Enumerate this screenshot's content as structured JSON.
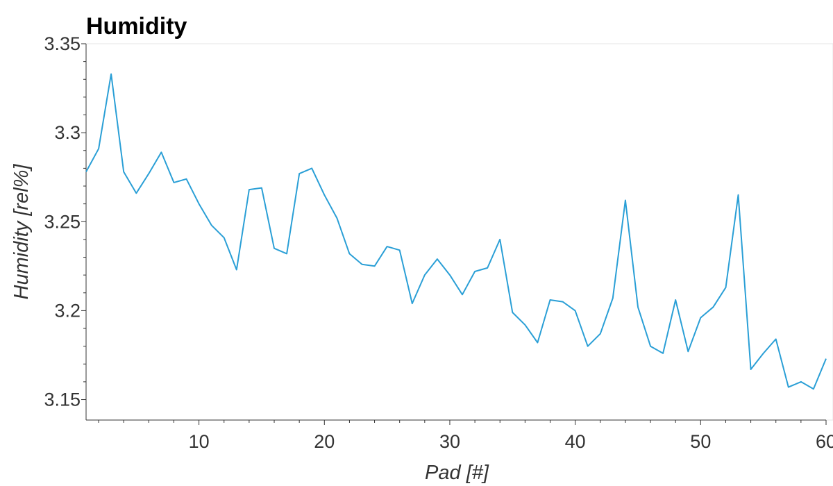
{
  "chart_data": {
    "type": "line",
    "title": "Humidity",
    "xlabel": "Pad [#]",
    "ylabel": "Humidity [rel%]",
    "xlim": [
      1,
      60
    ],
    "ylim": [
      3.1385,
      3.35
    ],
    "xticks": [
      10,
      20,
      30,
      40,
      50,
      60
    ],
    "xtick_labels": [
      "10",
      "20",
      "30",
      "40",
      "50",
      "60"
    ],
    "yticks": [
      3.15,
      3.2,
      3.25,
      3.3,
      3.35
    ],
    "ytick_labels": [
      "3.15",
      "3.2",
      "3.25",
      "3.3",
      "3.35"
    ],
    "grid": false,
    "line_color": "#2a9fd6",
    "x": [
      1,
      2,
      3,
      4,
      5,
      6,
      7,
      8,
      9,
      10,
      11,
      12,
      13,
      14,
      15,
      16,
      17,
      18,
      19,
      20,
      21,
      22,
      23,
      24,
      25,
      26,
      27,
      28,
      29,
      30,
      31,
      32,
      33,
      34,
      35,
      36,
      37,
      38,
      39,
      40,
      41,
      42,
      43,
      44,
      45,
      46,
      47,
      48,
      49,
      50,
      51,
      52,
      53,
      54,
      55,
      56,
      57,
      58,
      59,
      60
    ],
    "y": [
      3.278,
      3.291,
      3.333,
      3.278,
      3.266,
      3.277,
      3.289,
      3.272,
      3.274,
      3.26,
      3.248,
      3.241,
      3.223,
      3.268,
      3.269,
      3.235,
      3.232,
      3.277,
      3.28,
      3.265,
      3.252,
      3.232,
      3.226,
      3.225,
      3.236,
      3.234,
      3.204,
      3.22,
      3.229,
      3.22,
      3.209,
      3.222,
      3.224,
      3.24,
      3.199,
      3.192,
      3.182,
      3.206,
      3.205,
      3.2,
      3.18,
      3.187,
      3.207,
      3.262,
      3.202,
      3.18,
      3.176,
      3.206,
      3.177,
      3.196,
      3.202,
      3.213,
      3.265,
      3.167,
      3.176,
      3.184,
      3.157,
      3.16,
      3.156,
      3.173
    ]
  }
}
